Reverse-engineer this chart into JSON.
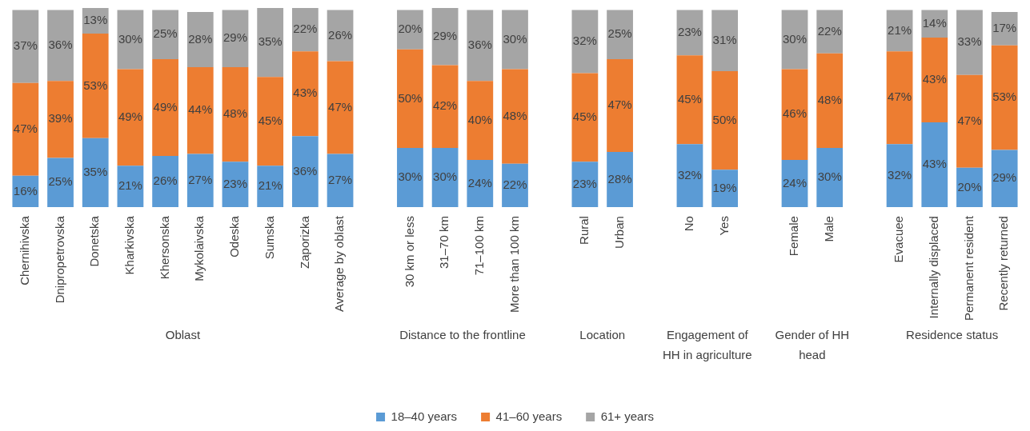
{
  "chart_data": {
    "type": "bar",
    "stacked": true,
    "legend": "bottom",
    "categories": [
      "Chernihivska",
      "Dnipropetrovska",
      "Donetska",
      "Kharkivska",
      "Khersonska",
      "Mykolaivska",
      "Odeska",
      "Sumska",
      "Zaporizka",
      "Average by oblast",
      null,
      "30 km or less",
      "31–70 km",
      "71–100 km",
      "More than 100 km",
      null,
      "Rural",
      "Urban",
      null,
      "No",
      "Yes",
      null,
      "Female",
      "Male",
      null,
      "Evacuee",
      "Internally displaced",
      "Permanent resident",
      "Recently returned"
    ],
    "series": [
      {
        "name": "18–40 years",
        "color": "#5b9bd5",
        "values": [
          16,
          25,
          35,
          21,
          26,
          27,
          23,
          21,
          36,
          27,
          null,
          30,
          30,
          24,
          22,
          null,
          23,
          28,
          null,
          32,
          19,
          null,
          24,
          30,
          null,
          32,
          43,
          20,
          29
        ],
        "value_labels": [
          "16%",
          "25%",
          "35%",
          "21%",
          "26%",
          "27%",
          "23%",
          "21%",
          "36%",
          "27%",
          null,
          "30%",
          "30%",
          "24%",
          "22%",
          null,
          "23%",
          "28%",
          null,
          "32%",
          "19%",
          null,
          "24%",
          "30%",
          null,
          "32%",
          "43%",
          "20%",
          "29%"
        ]
      },
      {
        "name": "41–60 years",
        "color": "#ed7d31",
        "values": [
          47,
          39,
          53,
          49,
          49,
          44,
          48,
          45,
          43,
          47,
          null,
          50,
          42,
          40,
          48,
          null,
          45,
          47,
          null,
          45,
          50,
          null,
          46,
          48,
          null,
          47,
          43,
          47,
          53
        ],
        "value_labels": [
          "47%",
          "39%",
          "53%",
          "49%",
          "49%",
          "44%",
          "48%",
          "45%",
          "43%",
          "47%",
          null,
          "50%",
          "42%",
          "40%",
          "48%",
          null,
          "45%",
          "47%",
          null,
          "45%",
          "50%",
          null,
          "46%",
          "48%",
          null,
          "47%",
          "43%",
          "47%",
          "53%"
        ]
      },
      {
        "name": "61+ years",
        "color": "#a5a5a5",
        "values": [
          37,
          36,
          13,
          30,
          25,
          28,
          29,
          35,
          22,
          26,
          null,
          20,
          29,
          36,
          30,
          null,
          32,
          25,
          null,
          23,
          31,
          null,
          30,
          22,
          null,
          21,
          14,
          33,
          17
        ],
        "value_labels": [
          "37%",
          "36%",
          "13%",
          "30%",
          "25%",
          "28%",
          "29%",
          "35%",
          "22%",
          "26%",
          null,
          "20%",
          "29%",
          "36%",
          "30%",
          null,
          "32%",
          "25%",
          null,
          "23%",
          "31%",
          null,
          "30%",
          "22%",
          null,
          "21%",
          "14%",
          "33%",
          "17%"
        ]
      }
    ],
    "annotations": [
      "Oblast",
      "Distance to the frontline",
      "Location",
      "Engagement of HH in agriculture",
      "Gender of HH head",
      "Residence status"
    ]
  }
}
